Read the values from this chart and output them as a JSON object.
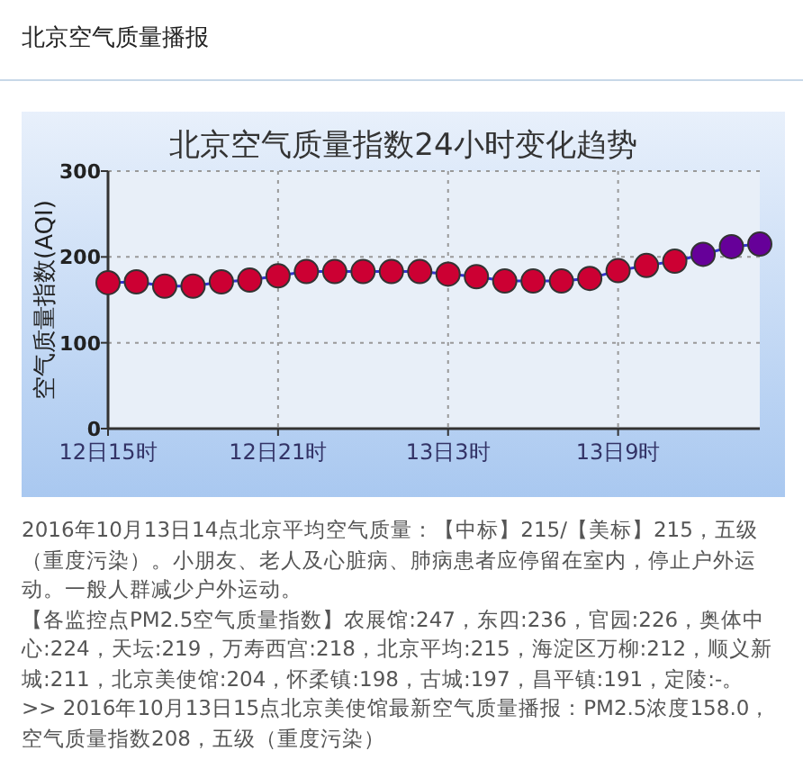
{
  "chart_data": {
    "type": "line",
    "title": "北京空气质量指数24小时变化趋势",
    "ylabel": "空气质量指数(AQI)",
    "categories": [
      "12日15时",
      null,
      null,
      null,
      null,
      null,
      "12日21时",
      null,
      null,
      null,
      null,
      null,
      "13日3时",
      null,
      null,
      null,
      null,
      null,
      "13日9时",
      null,
      null,
      null,
      null,
      null
    ],
    "series": [
      {
        "color": "#3333cc",
        "colors": [
          "#cc0033",
          "#cc0033",
          "#cc0033",
          "#cc0033",
          "#cc0033",
          "#cc0033",
          "#cc0033",
          "#cc0033",
          "#cc0033",
          "#cc0033",
          "#cc0033",
          "#cc0033",
          "#cc0033",
          "#cc0033",
          "#cc0033",
          "#cc0033",
          "#cc0033",
          "#cc0033",
          "#cc0033",
          "#cc0033",
          "#cc0033",
          "#660099",
          "#660099",
          "#660099"
        ],
        "values": [
          170,
          171,
          166,
          166,
          171,
          173,
          178,
          183,
          183,
          183,
          183,
          183,
          180,
          177,
          172,
          172,
          172,
          175,
          184,
          190,
          195,
          203,
          212,
          215
        ]
      }
    ],
    "ylim": [
      0,
      300
    ],
    "yticks": [
      0,
      100,
      200,
      300
    ],
    "grid": true,
    "marker": "circle",
    "annotations": [
      "北京空气质量播报",
      "2016年10月13日14点北京平均空气质量：【中标】215/【美标】215，五级（重度污染）。小朋友、老人及心脏病、肺病患者应停留在室内，停止户外运动。一般人群减少户外运动。",
      "【各监控点PM2.5空气质量指数】农展馆:247，东四:236，官园:226，奥体中心:224，天坛:219，万寿西宫:218，北京平均:215，海淀区万柳:212，顺义新城:211，北京美使馆:204，怀柔镇:198，古城:197，昌平镇:191，定陵:-。",
      ">> 2016年10月13日15点北京美使馆最新空气质量播报：PM2.5浓度158.0，空气质量指数208，五级（重度污染）"
    ]
  }
}
